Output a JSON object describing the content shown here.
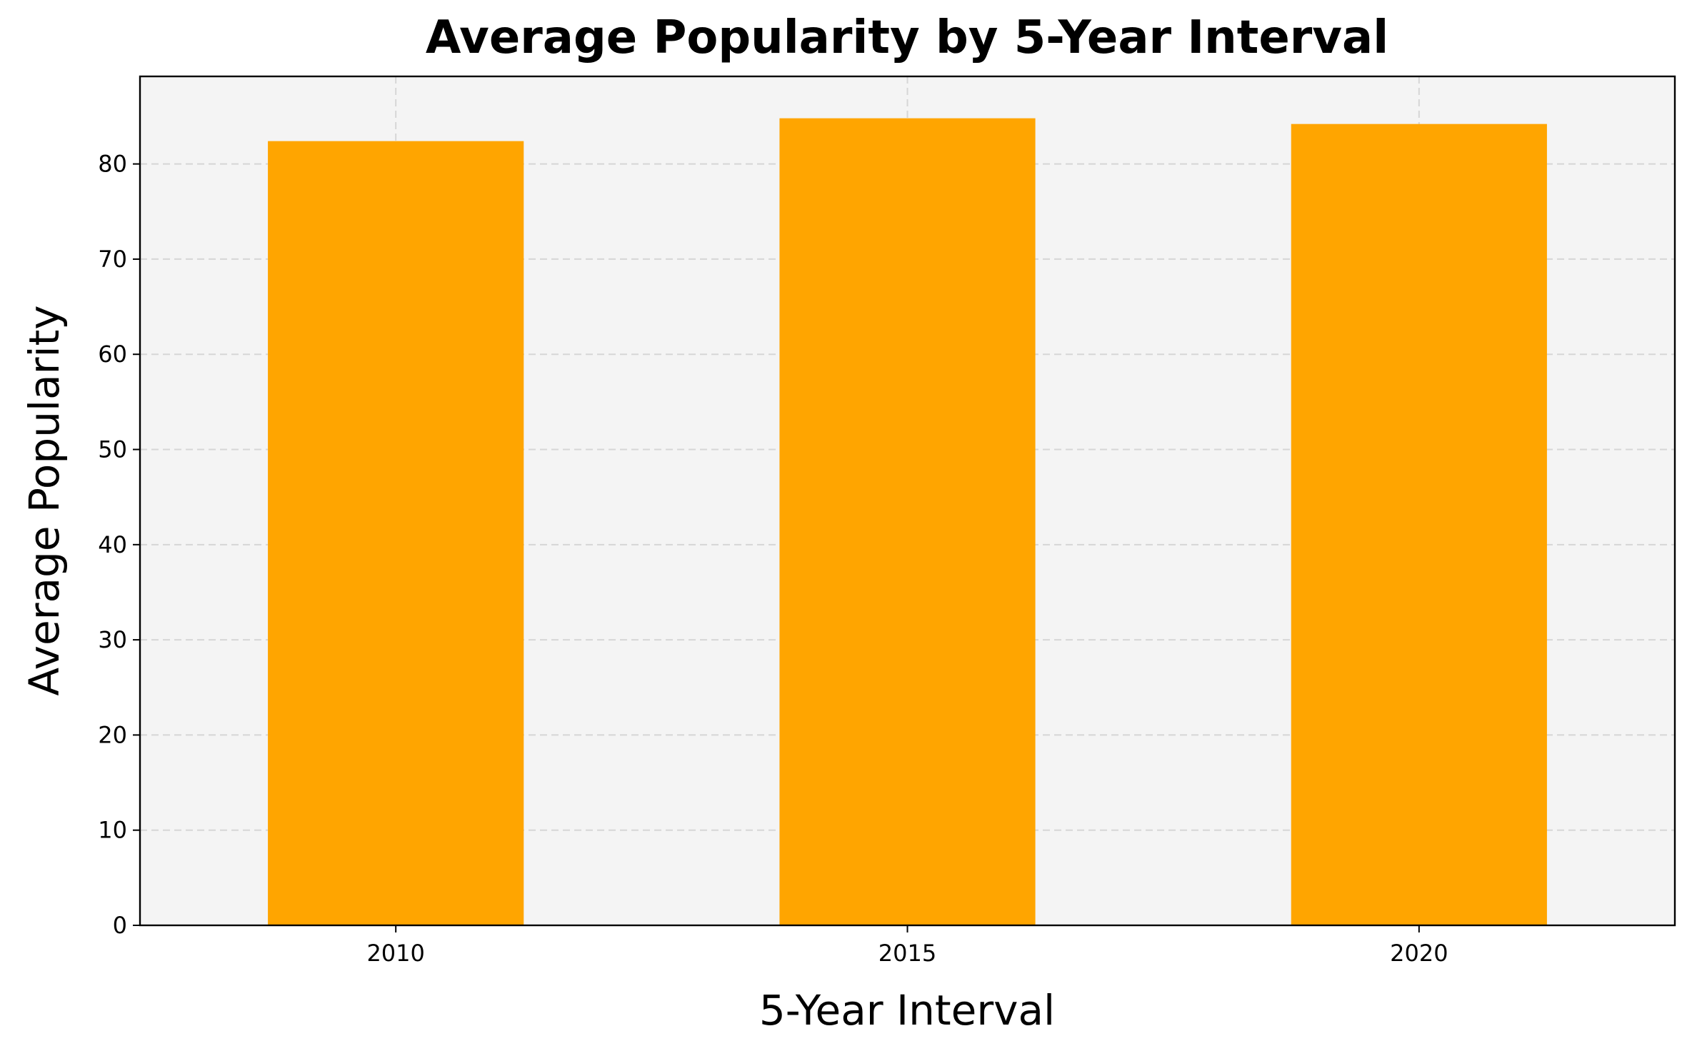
{
  "chart_data": {
    "type": "bar",
    "title": "Average Popularity by 5-Year Interval",
    "xlabel": "5-Year Interval",
    "ylabel": "Average Popularity",
    "categories": [
      "2010",
      "2015",
      "2020"
    ],
    "values": [
      82.4,
      84.8,
      84.2
    ],
    "ylim": [
      0,
      89.2
    ],
    "yticks": [
      0,
      10,
      20,
      30,
      40,
      50,
      60,
      70,
      80
    ],
    "grid": true,
    "colors": {
      "bar": "#ffa500",
      "plot_background": "#f4f4f4"
    }
  }
}
